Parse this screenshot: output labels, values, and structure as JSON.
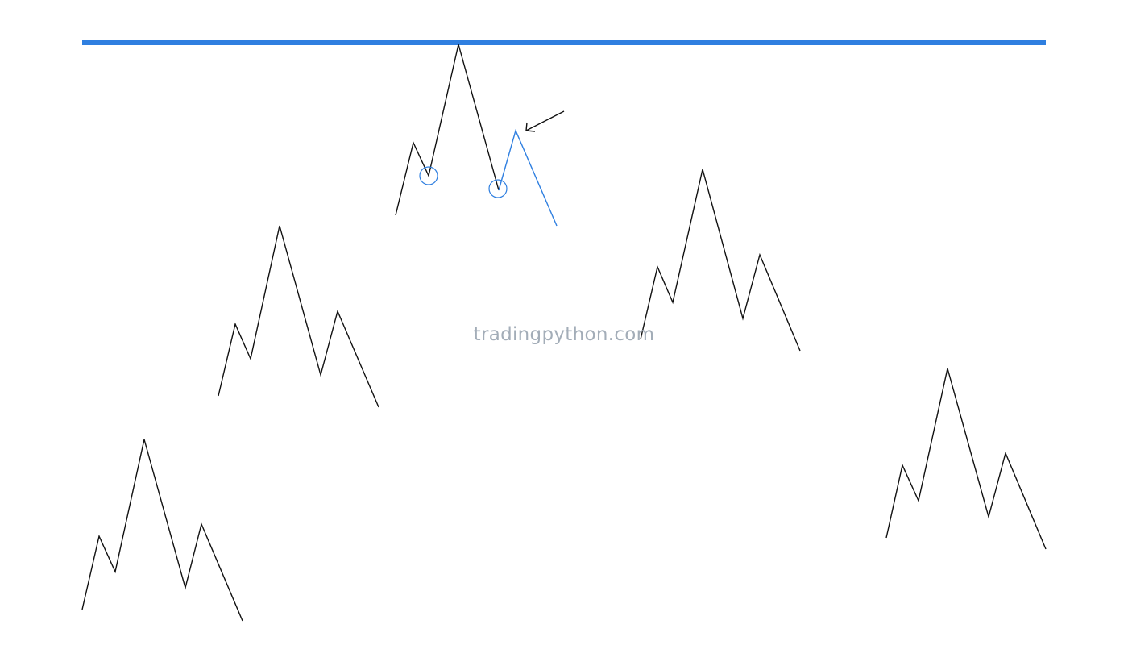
{
  "watermark": {
    "text": "tradingpython.com",
    "color": "#a3adb8"
  },
  "colors": {
    "resistance_line": "#2f7fe0",
    "highlight": "#2f7fe0",
    "pattern_line": "#111111"
  },
  "pattern_shape": "head-and-shoulders",
  "pattern_count": 5,
  "annotations": {
    "neckline_pivot_markers": 2,
    "arrow_icon": "arrow-left-down-icon"
  }
}
